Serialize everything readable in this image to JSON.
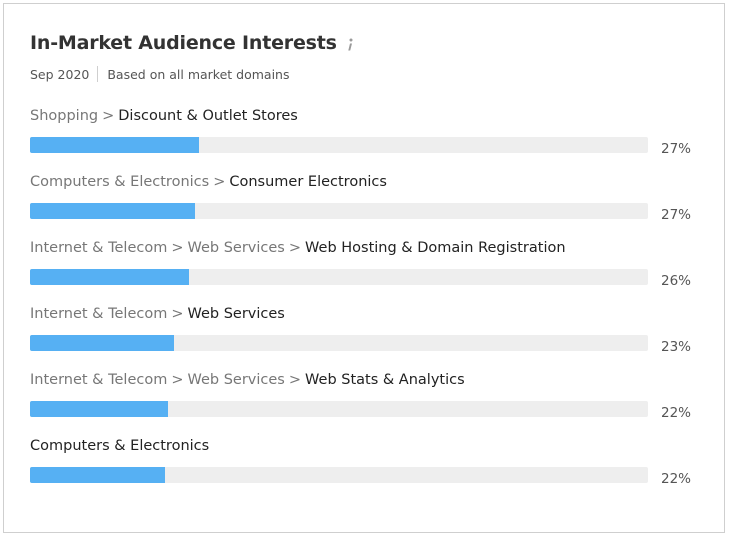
{
  "header": {
    "title": "In-Market Audience Interests",
    "date": "Sep 2020",
    "description": "Based on all market domains",
    "info_icon": "info-icon"
  },
  "colors": {
    "bar_fill": "#56b0f3",
    "bar_track": "#eeeeee"
  },
  "chart_data": {
    "type": "bar",
    "orientation": "horizontal",
    "title": "In-Market Audience Interests",
    "xlim": [
      0,
      100
    ],
    "categories": [
      "Shopping > Discount & Outlet Stores",
      "Computers & Electronics > Consumer Electronics",
      "Internet & Telecom > Web Services > Web Hosting & Domain Registration",
      "Internet & Telecom > Web Services",
      "Internet & Telecom > Web Services > Web Stats & Analytics",
      "Computers & Electronics"
    ],
    "values": [
      27,
      27,
      26,
      23,
      22,
      22
    ],
    "value_labels": [
      "27%",
      "27%",
      "26%",
      "23%",
      "22%",
      "22%"
    ],
    "rows": [
      {
        "path": [
          "Shopping"
        ],
        "leaf": "Discount & Outlet Stores",
        "value": 27.3,
        "label": "27%"
      },
      {
        "path": [
          "Computers & Electronics"
        ],
        "leaf": "Consumer Electronics",
        "value": 26.7,
        "label": "27%"
      },
      {
        "path": [
          "Internet & Telecom",
          "Web Services"
        ],
        "leaf": "Web Hosting & Domain Registration",
        "value": 25.7,
        "label": "26%"
      },
      {
        "path": [
          "Internet & Telecom"
        ],
        "leaf": "Web Services",
        "value": 23.3,
        "label": "23%"
      },
      {
        "path": [
          "Internet & Telecom",
          "Web Services"
        ],
        "leaf": "Web Stats & Analytics",
        "value": 22.4,
        "label": "22%"
      },
      {
        "path": [],
        "leaf": "Computers & Electronics",
        "value": 21.9,
        "label": "22%"
      }
    ]
  }
}
